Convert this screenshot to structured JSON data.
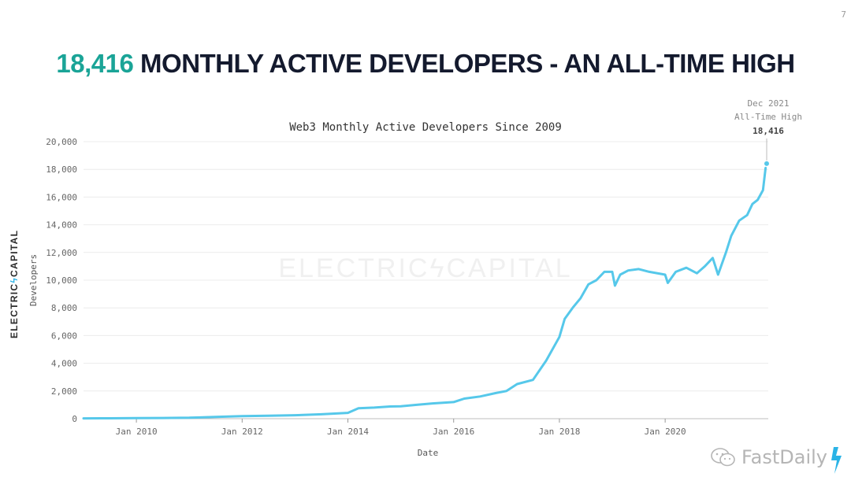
{
  "page_number": "7",
  "headline": {
    "accent": "18,416",
    "rest": "MONTHLY ACTIVE DEVELOPERS - AN ALL-TIME HIGH"
  },
  "side_logo": {
    "left": "ELECTRIC",
    "bolt": "ϟ",
    "right": "CAPITAL"
  },
  "watermark": "ELECTRICϟCAPITAL",
  "brand": "FastDaily",
  "colors": {
    "line": "#56c8ea",
    "accent": "#1aa497",
    "grid": "#ececec",
    "text": "#333333"
  },
  "chart_data": {
    "type": "line",
    "title": "Web3 Monthly Active Developers Since 2009",
    "xlabel": "Date",
    "ylabel": "Developers",
    "xlim": [
      2009.0,
      2021.95
    ],
    "ylim": [
      0,
      20000
    ],
    "x_ticks": [
      {
        "label": "Jan 2010",
        "value": 2010.0
      },
      {
        "label": "Jan 2012",
        "value": 2012.0
      },
      {
        "label": "Jan 2014",
        "value": 2014.0
      },
      {
        "label": "Jan 2016",
        "value": 2016.0
      },
      {
        "label": "Jan 2018",
        "value": 2018.0
      },
      {
        "label": "Jan 2020",
        "value": 2020.0
      }
    ],
    "y_ticks": [
      0,
      2000,
      4000,
      6000,
      8000,
      10000,
      12000,
      14000,
      16000,
      18000,
      20000
    ],
    "y_tick_labels": [
      "0",
      "2,000",
      "4,000",
      "6,000",
      "8,000",
      "10,000",
      "12,000",
      "14,000",
      "16,000",
      "18,000",
      "20,000"
    ],
    "grid": true,
    "series": [
      {
        "x": [
          2009.0,
          2009.5,
          2010.0,
          2010.5,
          2011.0,
          2011.5,
          2012.0,
          2012.5,
          2013.0,
          2013.5,
          2014.0,
          2014.2,
          2014.5,
          2014.8,
          2015.0,
          2015.3,
          2015.6,
          2016.0,
          2016.2,
          2016.5,
          2016.8,
          2017.0,
          2017.2,
          2017.5,
          2017.75,
          2018.0,
          2018.1,
          2018.25,
          2018.4,
          2018.55,
          2018.7,
          2018.85,
          2019.0,
          2019.05,
          2019.15,
          2019.3,
          2019.5,
          2019.7,
          2020.0,
          2020.05,
          2020.2,
          2020.4,
          2020.6,
          2020.75,
          2020.9,
          2021.0,
          2021.15,
          2021.25,
          2021.4,
          2021.55,
          2021.65,
          2021.75,
          2021.85,
          2021.9
        ],
        "y": [
          20,
          30,
          40,
          50,
          70,
          130,
          180,
          210,
          250,
          320,
          420,
          750,
          800,
          880,
          900,
          1000,
          1100,
          1200,
          1450,
          1600,
          1850,
          2000,
          2500,
          2800,
          4200,
          5900,
          7200,
          8000,
          8700,
          9700,
          10000,
          10600,
          10600,
          9600,
          10400,
          10700,
          10800,
          10600,
          10400,
          9800,
          10600,
          10900,
          10500,
          11000,
          11600,
          10400,
          12000,
          13200,
          14300,
          14700,
          15500,
          15800,
          16500,
          18100
        ]
      }
    ],
    "annotation": {
      "x": 2021.92,
      "y": 18416,
      "line1": "Dec 2021",
      "line2": "All-Time High",
      "value": "18,416"
    }
  }
}
